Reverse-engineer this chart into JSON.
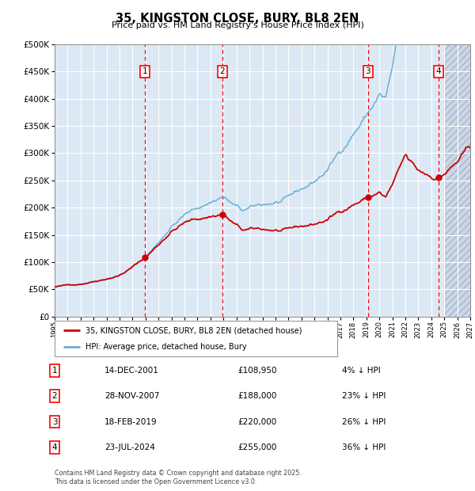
{
  "title": "35, KINGSTON CLOSE, BURY, BL8 2EN",
  "subtitle": "Price paid vs. HM Land Registry's House Price Index (HPI)",
  "legend_line1": "35, KINGSTON CLOSE, BURY, BL8 2EN (detached house)",
  "legend_line2": "HPI: Average price, detached house, Bury",
  "transactions": [
    {
      "num": 1,
      "date": "14-DEC-2001",
      "price": 108950,
      "pct": "4%",
      "dir": "↓",
      "year": 2001.96
    },
    {
      "num": 2,
      "date": "28-NOV-2007",
      "price": 188000,
      "pct": "23%",
      "dir": "↓",
      "year": 2007.91
    },
    {
      "num": 3,
      "date": "18-FEB-2019",
      "price": 220000,
      "pct": "26%",
      "dir": "↓",
      "year": 2019.13
    },
    {
      "num": 4,
      "date": "23-JUL-2024",
      "price": 255000,
      "pct": "36%",
      "dir": "↓",
      "year": 2024.56
    }
  ],
  "hpi_color": "#6baed6",
  "price_color": "#cc0000",
  "bg_color": "#dce9f5",
  "grid_color": "#ffffff",
  "dashed_color": "#ff0000",
  "ylim": [
    0,
    500000
  ],
  "xlim": [
    1995,
    2027
  ],
  "footnote": "Contains HM Land Registry data © Crown copyright and database right 2025.\nThis data is licensed under the Open Government Licence v3.0.",
  "yticks": [
    0,
    50000,
    100000,
    150000,
    200000,
    250000,
    300000,
    350000,
    400000,
    450000,
    500000
  ],
  "hatch_start": 2025.0
}
